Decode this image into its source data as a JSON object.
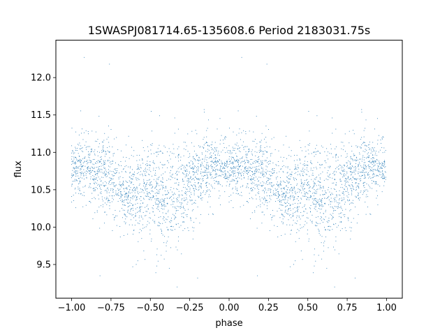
{
  "chart_data": {
    "type": "scatter",
    "title": "1SWASPJ081714.65-135608.6 Period 2183031.75s",
    "xlabel": "phase",
    "ylabel": "flux",
    "xlim": [
      -1.1,
      1.1
    ],
    "ylim": [
      9.05,
      12.5
    ],
    "x_ticks": [
      -1.0,
      -0.75,
      -0.5,
      -0.25,
      0.0,
      0.25,
      0.5,
      0.75,
      1.0
    ],
    "x_tick_labels": [
      "−1.00",
      "−0.75",
      "−0.50",
      "−0.25",
      "0.00",
      "0.25",
      "0.50",
      "0.75",
      "1.00"
    ],
    "y_ticks": [
      9.5,
      10.0,
      10.5,
      11.0,
      11.5,
      12.0
    ],
    "y_tick_labels": [
      "9.5",
      "10.0",
      "10.5",
      "11.0",
      "11.5",
      "12.0"
    ],
    "grid": false,
    "legend": "none",
    "point_color": "#1f77b4",
    "series_description_note": "",
    "phase_profile": {
      "phase": [
        0.0,
        0.05,
        0.1,
        0.15,
        0.2,
        0.25,
        0.3,
        0.35,
        0.4,
        0.45,
        0.5,
        0.55,
        0.6,
        0.65,
        0.7,
        0.75,
        0.8,
        0.85,
        0.9,
        0.95,
        1.0
      ],
      "median_flux": [
        10.82,
        10.85,
        10.8,
        10.72,
        10.68,
        10.62,
        10.55,
        10.42,
        10.45,
        10.4,
        10.55,
        10.45,
        10.4,
        10.48,
        10.5,
        10.58,
        10.68,
        10.75,
        10.8,
        10.85,
        10.82
      ],
      "spread": [
        0.18,
        0.2,
        0.2,
        0.22,
        0.25,
        0.25,
        0.22,
        0.2,
        0.25,
        0.28,
        0.3,
        0.32,
        0.3,
        0.32,
        0.3,
        0.28,
        0.25,
        0.22,
        0.2,
        0.2,
        0.18
      ]
    },
    "outlier_points": [
      {
        "x": -0.92,
        "y": 12.27
      },
      {
        "x": 0.08,
        "y": 12.27
      },
      {
        "x": -0.76,
        "y": 12.18
      },
      {
        "x": 0.24,
        "y": 12.18
      },
      {
        "x": -0.33,
        "y": 9.2
      },
      {
        "x": 0.67,
        "y": 9.2
      },
      {
        "x": -0.82,
        "y": 9.35
      },
      {
        "x": 0.18,
        "y": 9.35
      },
      {
        "x": -0.38,
        "y": 9.45
      },
      {
        "x": 0.62,
        "y": 9.45
      },
      {
        "x": -0.2,
        "y": 9.32
      },
      {
        "x": 0.8,
        "y": 9.32
      },
      {
        "x": -0.58,
        "y": 9.55
      },
      {
        "x": 0.42,
        "y": 9.55
      }
    ],
    "n_points_per_phase_cycle": 1900
  }
}
